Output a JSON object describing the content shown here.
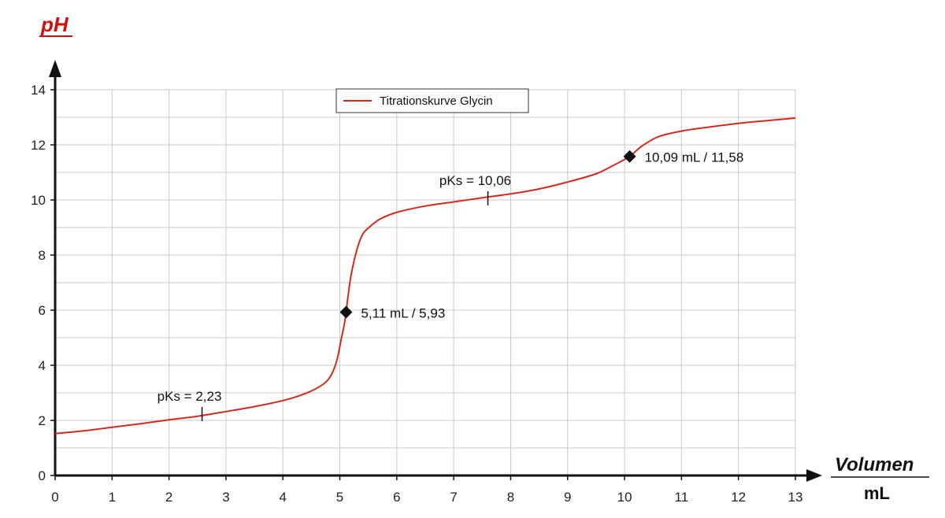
{
  "chart_data": {
    "type": "line",
    "title": "",
    "ylabel": "pH",
    "xlabel": "Volumen",
    "xunit": "mL",
    "xlim": [
      0,
      13
    ],
    "ylim": [
      0,
      14
    ],
    "x_ticks": [
      "0",
      "1",
      "2",
      "3",
      "4",
      "5",
      "6",
      "7",
      "8",
      "9",
      "10",
      "11",
      "12",
      "13"
    ],
    "y_ticks": [
      "0",
      "2",
      "4",
      "6",
      "8",
      "10",
      "12",
      "14"
    ],
    "grid": true,
    "legend_position": "top-center",
    "series": [
      {
        "name": "Titrationskurve Glycin",
        "color": "#d42a1e",
        "x": [
          0,
          0.5,
          1,
          1.5,
          2,
          2.5,
          3,
          3.5,
          4,
          4.4,
          4.7,
          4.85,
          4.95,
          5.02,
          5.08,
          5.11,
          5.15,
          5.2,
          5.3,
          5.4,
          5.5,
          5.7,
          6,
          6.5,
          7,
          7.5,
          8,
          8.5,
          9,
          9.5,
          9.8,
          10.09,
          10.3,
          10.6,
          11,
          11.5,
          12,
          12.5,
          13
        ],
        "y": [
          1.52,
          1.62,
          1.75,
          1.88,
          2.02,
          2.15,
          2.32,
          2.5,
          2.72,
          2.98,
          3.3,
          3.65,
          4.2,
          4.9,
          5.5,
          5.93,
          6.6,
          7.3,
          8.2,
          8.75,
          8.98,
          9.3,
          9.55,
          9.78,
          9.93,
          10.08,
          10.22,
          10.4,
          10.65,
          10.95,
          11.25,
          11.58,
          11.95,
          12.3,
          12.5,
          12.65,
          12.78,
          12.88,
          12.97
        ]
      }
    ],
    "markers": [
      {
        "x": 5.11,
        "y": 5.93,
        "label": "5,11 mL / 5,93"
      },
      {
        "x": 10.09,
        "y": 11.58,
        "label": "10,09 mL / 11,58"
      }
    ],
    "annotations": [
      {
        "x": 2.58,
        "y": 2.23,
        "label": "pKs = 2,23"
      },
      {
        "x": 7.6,
        "y": 10.06,
        "label": "pKs = 10,06"
      }
    ]
  }
}
